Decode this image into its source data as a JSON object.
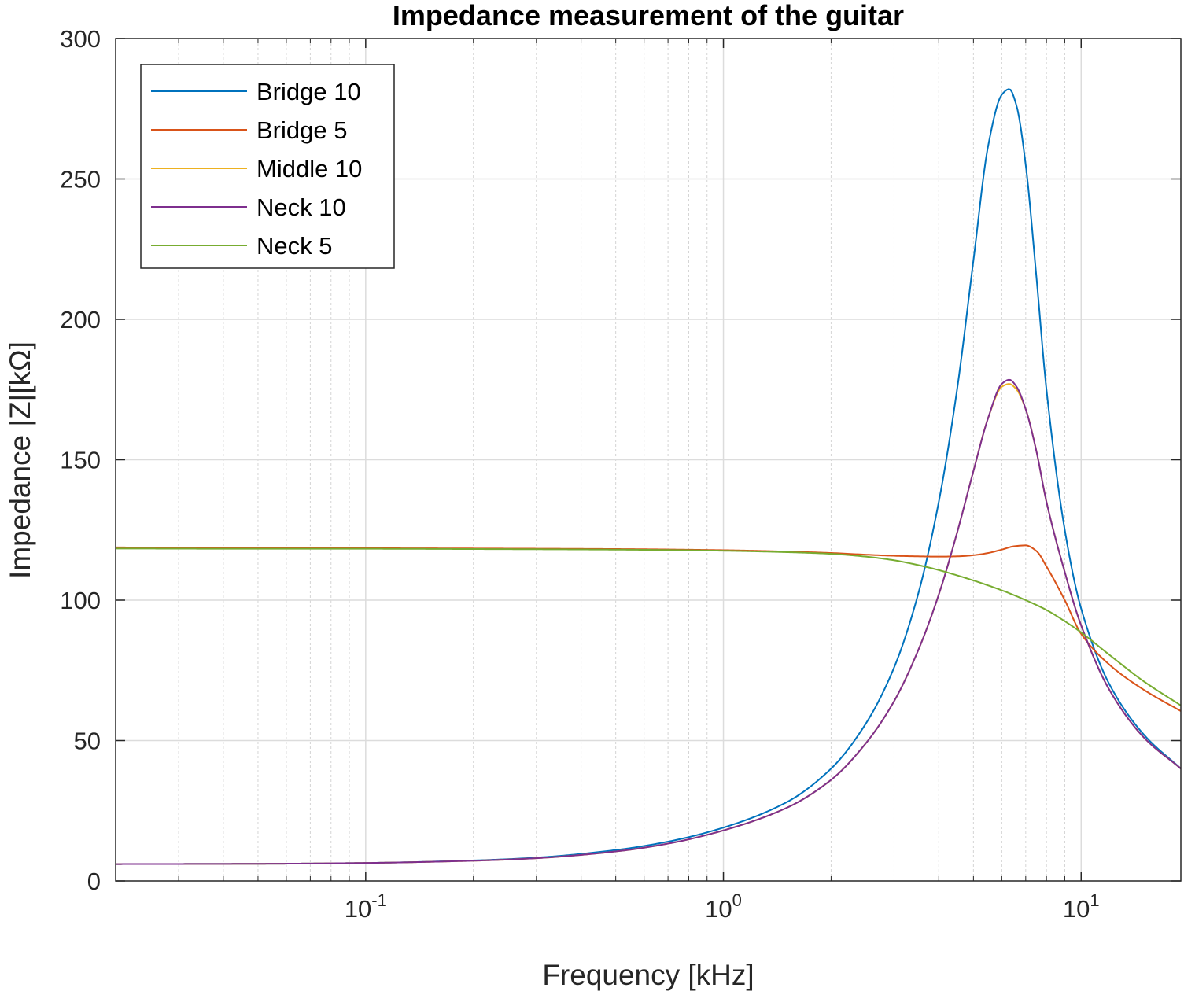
{
  "chart_data": {
    "type": "line",
    "title": "Impedance measurement of the guitar",
    "xlabel": "Frequency [kHz]",
    "ylabel": "Impedance |Z|[kΩ]",
    "xscale": "log",
    "xlim": [
      0.02,
      19
    ],
    "ylim": [
      0,
      300
    ],
    "xticks": [
      0.1,
      1,
      10
    ],
    "xtick_labels": [
      {
        "base": "10",
        "exp": "-1"
      },
      {
        "base": "10",
        "exp": "0"
      },
      {
        "base": "10",
        "exp": "1"
      }
    ],
    "yticks": [
      0,
      50,
      100,
      150,
      200,
      250,
      300
    ],
    "grid": true,
    "legend_position": "top-left",
    "series": [
      {
        "name": "Bridge 10",
        "color": "#0072BD",
        "x": [
          0.02,
          0.05,
          0.1,
          0.2,
          0.3,
          0.5,
          0.7,
          1.0,
          1.5,
          2.0,
          2.5,
          3.0,
          3.5,
          4.0,
          4.5,
          5.0,
          5.5,
          6.0,
          6.3,
          6.6,
          7.0,
          7.5,
          8.0,
          9.0,
          10.0,
          12.0,
          15.0,
          19.0
        ],
        "y": [
          6,
          6.1,
          6.4,
          7.3,
          8.3,
          11,
          14,
          19,
          28,
          40,
          56,
          76,
          102,
          135,
          175,
          221,
          262,
          280,
          282,
          276,
          255,
          215,
          175,
          125,
          97,
          70,
          52,
          40
        ]
      },
      {
        "name": "Bridge 5",
        "color": "#D95319",
        "x": [
          0.02,
          0.05,
          0.1,
          0.2,
          0.5,
          1.0,
          1.5,
          2.0,
          2.5,
          3.0,
          3.5,
          4.0,
          4.5,
          5.0,
          5.5,
          6.0,
          6.5,
          7.0,
          7.5,
          8.0,
          9.0,
          10.0,
          12.0,
          15.0,
          19.0
        ],
        "y": [
          118.8,
          118.6,
          118.5,
          118.4,
          118.2,
          117.8,
          117.3,
          116.8,
          116.2,
          115.8,
          115.6,
          115.5,
          115.6,
          116,
          116.8,
          118,
          119.2,
          119.5,
          117.5,
          112,
          100,
          88,
          77,
          68,
          60.5
        ]
      },
      {
        "name": "Middle 10",
        "color": "#EDB120",
        "x": [
          0.02,
          0.05,
          0.1,
          0.2,
          0.3,
          0.5,
          0.7,
          1.0,
          1.5,
          2.0,
          2.5,
          3.0,
          3.5,
          4.0,
          4.5,
          5.0,
          5.5,
          6.0,
          6.3,
          6.6,
          7.0,
          7.5,
          8.0,
          9.0,
          10.0,
          12.0,
          15.0,
          19.0
        ],
        "y": [
          6,
          6.1,
          6.4,
          7.2,
          8.1,
          10.5,
          13.3,
          18,
          26,
          36,
          49,
          64,
          82,
          102,
          124,
          146,
          165,
          176,
          177,
          175,
          168,
          153,
          135,
          110,
          91,
          68,
          51,
          40
        ]
      },
      {
        "name": "Neck 10",
        "color": "#7E2F8E",
        "x": [
          0.02,
          0.05,
          0.1,
          0.2,
          0.3,
          0.5,
          0.7,
          1.0,
          1.5,
          2.0,
          2.5,
          3.0,
          3.5,
          4.0,
          4.5,
          5.0,
          5.5,
          6.0,
          6.3,
          6.6,
          7.0,
          7.5,
          8.0,
          9.0,
          10.0,
          12.0,
          15.0,
          19.0
        ],
        "y": [
          6,
          6.1,
          6.4,
          7.2,
          8.1,
          10.5,
          13.3,
          18,
          26,
          36,
          49,
          64,
          82,
          102,
          124,
          146,
          165,
          177,
          178.5,
          176,
          168,
          153,
          135,
          110,
          91,
          68,
          51,
          40
        ]
      },
      {
        "name": "Neck 5",
        "color": "#77AC30",
        "x": [
          0.02,
          0.05,
          0.1,
          0.2,
          0.5,
          1.0,
          1.5,
          2.0,
          2.5,
          3.0,
          3.5,
          4.0,
          5.0,
          6.0,
          7.0,
          8.0,
          9.0,
          10.0,
          12.0,
          15.0,
          19.0
        ],
        "y": [
          118.4,
          118.3,
          118.3,
          118.2,
          118,
          117.6,
          117.1,
          116.5,
          115.5,
          114.2,
          112.5,
          110.7,
          107,
          103.5,
          100,
          96.5,
          92.5,
          88.5,
          80.5,
          71,
          62.5
        ]
      }
    ]
  }
}
